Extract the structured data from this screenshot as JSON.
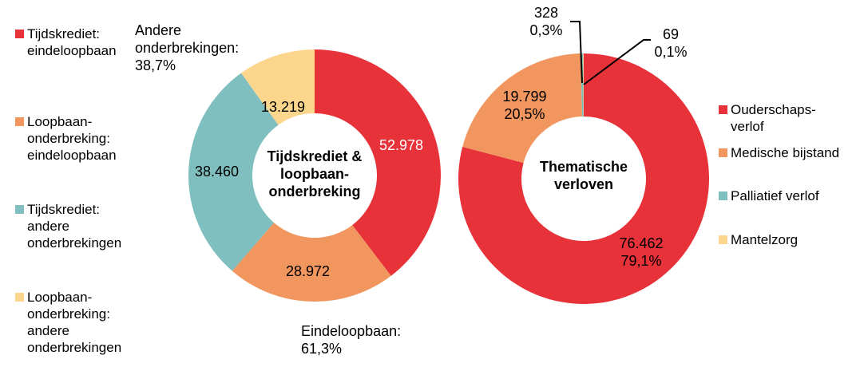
{
  "chart_data": [
    {
      "type": "pie",
      "donut": true,
      "center_label": [
        "Tijdskrediet &",
        "loopbaan-",
        "onderbreking"
      ],
      "categories": [
        "Tijdskrediet: eindeloopbaan",
        "Loopbaan-onderbreking: eindeloopbaan",
        "Tijdskrediet: andere onderbrekingen",
        "Loopbaan-onderbreking: andere onderbrekingen"
      ],
      "values": [
        52978,
        28972,
        38460,
        13219
      ],
      "value_labels": [
        "52.978",
        "28.972",
        "38.460",
        "13.219"
      ],
      "colors": [
        "#E8323A",
        "#F0965E",
        "#80BFBF",
        "#FDD68E"
      ],
      "legend": {
        "position": "left",
        "items": [
          [
            "Tijdskrediet:",
            "eindeloopbaan"
          ],
          [
            "Loopbaan-",
            "onderbreking:",
            "eindeloopbaan"
          ],
          [
            "Tijdskrediet:",
            "andere",
            "onderbrekingen"
          ],
          [
            "Loopbaan-",
            "onderbreking:",
            "andere",
            "onderbrekingen"
          ]
        ]
      },
      "annotations": [
        [
          "Andere",
          "onderbrekingen:",
          "38,7%"
        ],
        [
          "Eindeloopbaan:",
          "61,3%"
        ]
      ]
    },
    {
      "type": "pie",
      "donut": true,
      "center_label": [
        "Thematische",
        "verloven"
      ],
      "categories": [
        "Ouderschapsverlof",
        "Medische bijstand",
        "Palliatief verlof",
        "Mantelzorg"
      ],
      "values": [
        76462,
        19799,
        328,
        69
      ],
      "value_labels": [
        [
          "76.462",
          "79,1%"
        ],
        [
          "19.799",
          "20,5%"
        ],
        [
          "328",
          "0,3%"
        ],
        [
          "69",
          "0,1%"
        ]
      ],
      "colors": [
        "#E8323A",
        "#F0965E",
        "#80BFBF",
        "#FDD68E"
      ],
      "legend": {
        "position": "right",
        "items": [
          [
            "Ouderschaps-",
            "verlof"
          ],
          [
            "Medische bijstand"
          ],
          [
            "Palliatief verlof"
          ],
          [
            "Mantelzorg"
          ]
        ]
      }
    }
  ]
}
